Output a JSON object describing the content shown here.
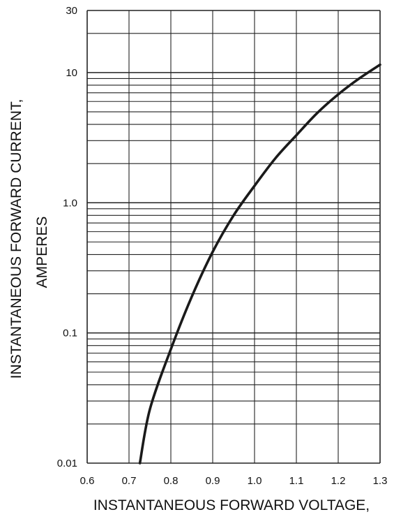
{
  "chart_data": {
    "type": "line",
    "ylabel_line1": "INSTANTANEOUS FORWARD CURRENT,",
    "ylabel_line2": "AMPERES",
    "xlabel": "INSTANTANEOUS FORWARD VOLTAGE,",
    "x_scale": "linear",
    "y_scale": "log",
    "xlim": [
      0.6,
      1.3
    ],
    "ylim": [
      0.01,
      30
    ],
    "grid": true,
    "x_ticks": [
      {
        "value": 0.6,
        "label": "0.6"
      },
      {
        "value": 0.7,
        "label": "0.7"
      },
      {
        "value": 0.8,
        "label": "0.8"
      },
      {
        "value": 0.9,
        "label": "0.9"
      },
      {
        "value": 1.0,
        "label": "1.0"
      },
      {
        "value": 1.1,
        "label": "1.1"
      },
      {
        "value": 1.2,
        "label": "1.2"
      },
      {
        "value": 1.3,
        "label": "1.3"
      }
    ],
    "y_ticks": [
      {
        "value": 0.01,
        "label": "0.01"
      },
      {
        "value": 0.1,
        "label": "0.1"
      },
      {
        "value": 1,
        "label": "1.0"
      },
      {
        "value": 10,
        "label": "10"
      },
      {
        "value": 30,
        "label": "30"
      }
    ],
    "series": [
      {
        "x": [
          0.726,
          0.75,
          0.8,
          0.85,
          0.9,
          0.95,
          1.0,
          1.05,
          1.1,
          1.15,
          1.2,
          1.25,
          1.3
        ],
        "y": [
          0.01,
          0.026,
          0.075,
          0.19,
          0.42,
          0.8,
          1.35,
          2.2,
          3.3,
          4.9,
          6.8,
          9.0,
          11.5
        ]
      }
    ],
    "line_color": "#1a1a1a",
    "grid_color": "#222222"
  }
}
